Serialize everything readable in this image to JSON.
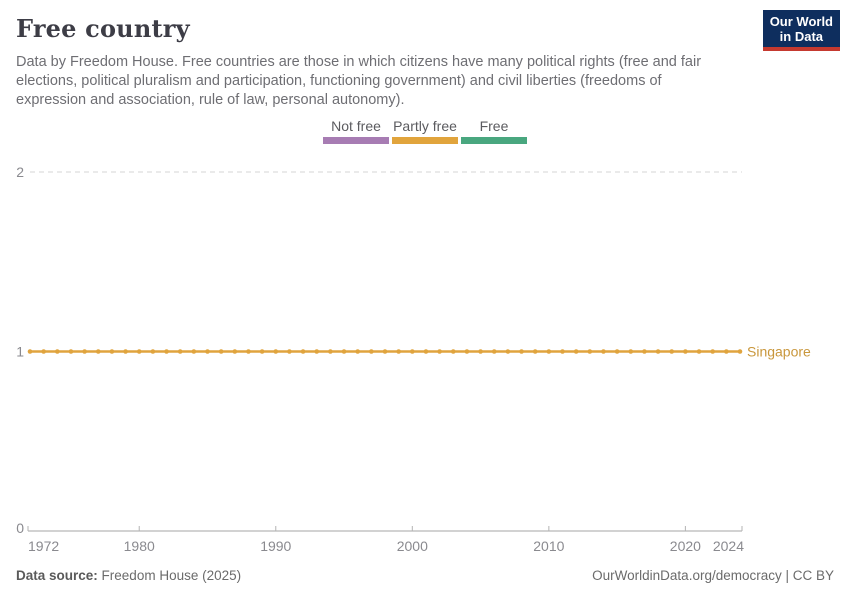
{
  "header": {
    "title": "Free country",
    "subtitle": "Data by Freedom House. Free countries are those in which citizens have many political rights (free and fair elections, political pluralism and participation, functioning government) and civil liberties (freedoms of expression and association, rule of law, personal autonomy)."
  },
  "logo": {
    "line1": "Our World",
    "line2": "in Data",
    "bg_color": "#0e2e5e",
    "accent_color": "#c5392f"
  },
  "legend": {
    "items": [
      {
        "label": "Not free",
        "color": "#a77cb3"
      },
      {
        "label": "Partly free",
        "color": "#e1a43c"
      },
      {
        "label": "Free",
        "color": "#49a77f"
      }
    ]
  },
  "chart_data": {
    "type": "line",
    "title": "Free country",
    "xlabel": "",
    "ylabel": "",
    "xlim": [
      1972,
      2024
    ],
    "ylim": [
      0,
      2
    ],
    "x_ticks": [
      1972,
      1980,
      1990,
      2000,
      2010,
      2020,
      2024
    ],
    "y_ticks": [
      0,
      1,
      2
    ],
    "grid": "horizontal-dashed",
    "legend_position": "top-center",
    "category_scale": {
      "0": "Not free",
      "1": "Partly free",
      "2": "Free"
    },
    "x": [
      1972,
      1973,
      1974,
      1975,
      1976,
      1977,
      1978,
      1979,
      1980,
      1981,
      1982,
      1983,
      1984,
      1985,
      1986,
      1987,
      1988,
      1989,
      1990,
      1991,
      1992,
      1993,
      1994,
      1995,
      1996,
      1997,
      1998,
      1999,
      2000,
      2001,
      2002,
      2003,
      2004,
      2005,
      2006,
      2007,
      2008,
      2009,
      2010,
      2011,
      2012,
      2013,
      2014,
      2015,
      2016,
      2017,
      2018,
      2019,
      2020,
      2021,
      2022,
      2023,
      2024
    ],
    "series": [
      {
        "name": "Singapore",
        "color": "#e0a43e",
        "label_color": "#c9973c",
        "values": [
          1,
          1,
          1,
          1,
          1,
          1,
          1,
          1,
          1,
          1,
          1,
          1,
          1,
          1,
          1,
          1,
          1,
          1,
          1,
          1,
          1,
          1,
          1,
          1,
          1,
          1,
          1,
          1,
          1,
          1,
          1,
          1,
          1,
          1,
          1,
          1,
          1,
          1,
          1,
          1,
          1,
          1,
          1,
          1,
          1,
          1,
          1,
          1,
          1,
          1,
          1,
          1,
          1
        ]
      }
    ],
    "colors": {
      "grid": "#d5d5d5",
      "axis": "#a6a6a6",
      "tick": "#b3b3b3"
    }
  },
  "footer": {
    "datasource_label": "Data source:",
    "datasource_value": "Freedom House (2025)",
    "right_text": "OurWorldinData.org/democracy | CC BY"
  }
}
